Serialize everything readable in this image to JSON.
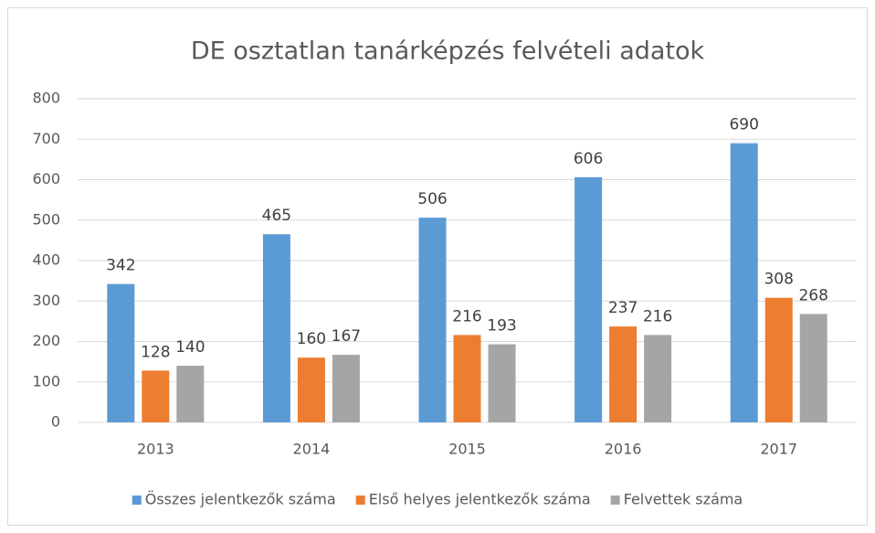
{
  "chart_data": {
    "type": "bar",
    "title": "DE osztatlan tanárképzés felvételi adatok",
    "categories": [
      "2013",
      "2014",
      "2015",
      "2016",
      "2017"
    ],
    "series": [
      {
        "name": "Összes jelentkezők száma",
        "color": "#5b9bd5",
        "values": [
          342,
          465,
          506,
          606,
          690
        ]
      },
      {
        "name": "Első helyes jelentkezők száma",
        "color": "#ed7d31",
        "values": [
          128,
          160,
          216,
          237,
          308
        ]
      },
      {
        "name": "Felvettek száma",
        "color": "#a5a5a5",
        "values": [
          140,
          167,
          193,
          216,
          268
        ]
      }
    ],
    "ylim": [
      0,
      800
    ],
    "yticks": [
      0,
      100,
      200,
      300,
      400,
      500,
      600,
      700,
      800
    ],
    "grid": true,
    "legend": "bottom"
  }
}
